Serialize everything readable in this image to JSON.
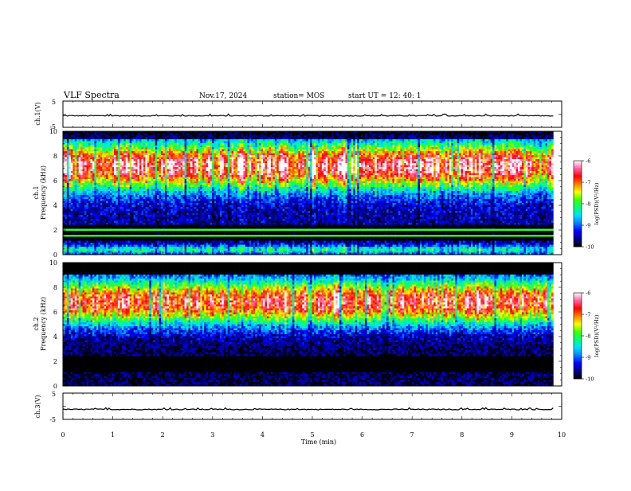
{
  "header": {
    "title": "VLF Spectra",
    "date": "Nov.17, 2024",
    "station": "station= MOS",
    "start": "start  UT  =   12: 40: 1"
  },
  "chart_data": [
    {
      "type": "line",
      "name": "ch1-voltage",
      "ylabel": "ch.1(V)",
      "ylim": [
        -5,
        5
      ],
      "yticks": [
        "5",
        "-5"
      ],
      "level": -0.6,
      "xlim": [
        0,
        10
      ]
    },
    {
      "type": "heatmap",
      "name": "ch1-spectrogram",
      "ylabel": "ch.1\nFrequency (kHz)",
      "ylim": [
        0,
        10
      ],
      "yticks": [
        "0",
        "2",
        "4",
        "6",
        "8",
        "10"
      ],
      "xlim": [
        0,
        9.83
      ],
      "band_peak_khz": 7.2,
      "colorbar": {
        "label": "log(PSD)(V²/Hz)",
        "range": [
          -10,
          -6
        ],
        "ticks": [
          "-6",
          "-7",
          "-8",
          "-9",
          "-10"
        ]
      }
    },
    {
      "type": "heatmap",
      "name": "ch2-spectrogram",
      "ylabel": "ch.2\nFrequency (kHz)",
      "ylim": [
        0,
        10
      ],
      "yticks": [
        "0",
        "2",
        "4",
        "6",
        "8",
        "10"
      ],
      "xlim": [
        0,
        9.83
      ],
      "band_peak_khz": 6.8,
      "colorbar": {
        "label": "log(PSD)(V²/Hz)",
        "range": [
          -10,
          -6
        ],
        "ticks": [
          "-6",
          "-7",
          "-8",
          "-9",
          "-10"
        ]
      }
    },
    {
      "type": "line",
      "name": "ch3-voltage",
      "ylabel": "ch.3(V)",
      "ylim": [
        -5,
        5
      ],
      "yticks": [
        "5",
        "-5"
      ],
      "level": -1.2,
      "xlim": [
        0,
        10
      ]
    }
  ],
  "xaxis": {
    "label": "Time (min)",
    "range": [
      0,
      10
    ],
    "ticks": [
      "0",
      "1",
      "2",
      "3",
      "4",
      "5",
      "6",
      "7",
      "8",
      "9",
      "10"
    ]
  },
  "colors": {
    "colormap": [
      "#000000",
      "#00008b",
      "#0000ff",
      "#0080ff",
      "#00e0ff",
      "#00ff80",
      "#40ff00",
      "#ffff00",
      "#ff8000",
      "#ff0000",
      "#ff60a0",
      "#ffffff"
    ]
  }
}
